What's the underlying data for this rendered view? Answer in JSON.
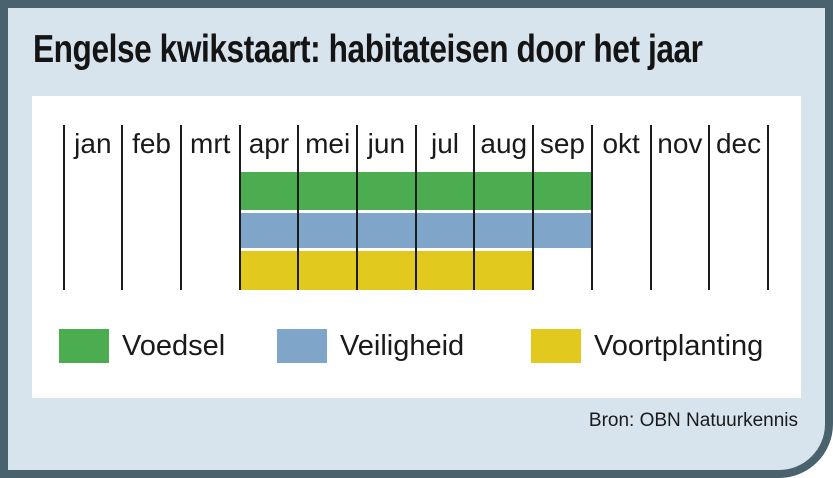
{
  "title": "Engelse kwikstaart: habitateisen door het jaar",
  "source": "Bron: OBN Natuurkennis",
  "colors": {
    "frame": "#4a626d",
    "card_background": "#d8e4ed",
    "panel_background": "#ffffff",
    "tick": "#1c1c1c",
    "text": "#1a1a1a"
  },
  "chart_data": {
    "type": "timeline",
    "title": "Engelse kwikstaart: habitateisen door het jaar",
    "categories": [
      "jan",
      "feb",
      "mrt",
      "apr",
      "mei",
      "jun",
      "jul",
      "aug",
      "sep",
      "okt",
      "nov",
      "dec"
    ],
    "series": [
      {
        "name": "Voedsel",
        "color": "#4cad50",
        "start": "apr",
        "end": "sep"
      },
      {
        "name": "Veiligheid",
        "color": "#7fa6c9",
        "start": "apr",
        "end": "sep"
      },
      {
        "name": "Voortplanting",
        "color": "#e2c91e",
        "start": "apr",
        "end": "aug"
      }
    ],
    "legend_position": "bottom",
    "grid": "vertical-month-lines"
  }
}
